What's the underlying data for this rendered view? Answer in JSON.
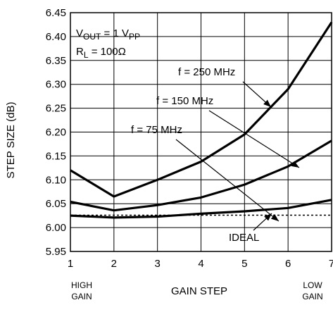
{
  "chart_data": {
    "type": "line",
    "ylabel": "STEP SIZE (dB)",
    "xlabel": "GAIN STEP",
    "x_left_label": [
      "HIGH",
      "GAIN"
    ],
    "x_right_label": [
      "LOW",
      "GAIN"
    ],
    "ylim": [
      5.95,
      6.45
    ],
    "xlim": [
      1,
      7
    ],
    "yticks": [
      "5.95",
      "6.00",
      "6.05",
      "6.10",
      "6.15",
      "6.20",
      "6.25",
      "6.30",
      "6.35",
      "6.40",
      "6.45"
    ],
    "xticks": [
      "1",
      "2",
      "3",
      "4",
      "5",
      "6",
      "7"
    ],
    "grid": true,
    "conditions": {
      "vout": {
        "main": "V",
        "sub1": "OUT",
        "mid": " = 1 V",
        "sub2": "PP"
      },
      "rl": {
        "main": "R",
        "sub": "L",
        "rest": " = 100Ω"
      }
    },
    "x": [
      1,
      2,
      3,
      4,
      5,
      6,
      7
    ],
    "series": [
      {
        "name": "f = 250 MHz",
        "values": [
          6.12,
          6.065,
          6.1,
          6.138,
          6.195,
          6.29,
          6.43
        ],
        "style": "solid"
      },
      {
        "name": "f = 150 MHz",
        "values": [
          6.054,
          6.036,
          6.047,
          6.063,
          6.09,
          6.128,
          6.182
        ],
        "style": "solid"
      },
      {
        "name": "f = 75 MHz",
        "values": [
          6.025,
          6.021,
          6.023,
          6.029,
          6.034,
          6.041,
          6.058
        ],
        "style": "solid"
      },
      {
        "name": "IDEAL",
        "values": [
          6.026,
          6.026,
          6.026,
          6.026,
          6.026,
          6.026,
          6.026
        ],
        "style": "dashed"
      }
    ]
  }
}
